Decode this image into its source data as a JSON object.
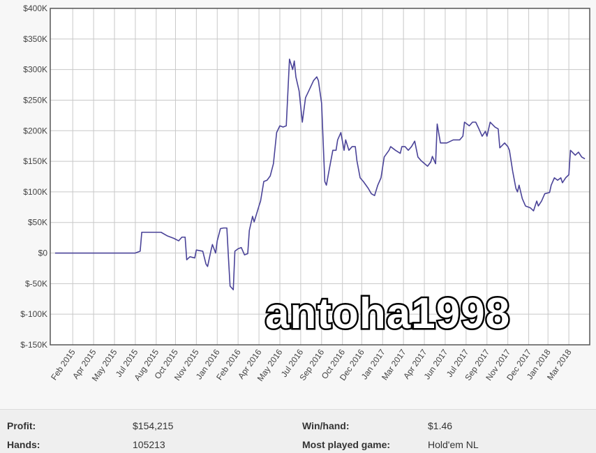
{
  "chart_data": {
    "type": "line",
    "x": [
      2014.99,
      2015.15,
      2015.32,
      2015.49,
      2015.52,
      2015.53,
      2015.58,
      2015.65,
      2015.69,
      2015.73,
      2015.76,
      2015.78,
      2015.8,
      2015.81,
      2015.83,
      2015.86,
      2015.87,
      2015.91,
      2015.93,
      2015.94,
      2015.96,
      2015.97,
      2015.99,
      2016.0,
      2016.02,
      2016.04,
      2016.06,
      2016.07,
      2016.08,
      2016.1,
      2016.11,
      2016.13,
      2016.15,
      2016.17,
      2016.19,
      2016.2,
      2016.22,
      2016.23,
      2016.26,
      2016.27,
      2016.29,
      2016.31,
      2016.33,
      2016.35,
      2016.37,
      2016.39,
      2016.41,
      2016.43,
      2016.45,
      2016.47,
      2016.48,
      2016.49,
      2016.51,
      2016.53,
      2016.55,
      2016.57,
      2016.6,
      2016.62,
      2016.63,
      2016.65,
      2016.67,
      2016.68,
      2016.7,
      2016.72,
      2016.74,
      2016.75,
      2016.77,
      2016.79,
      2016.8,
      2016.82,
      2016.84,
      2016.86,
      2016.87,
      2016.89,
      2016.91,
      2016.94,
      2016.96,
      2016.98,
      2017.0,
      2017.02,
      2017.04,
      2017.07,
      2017.08,
      2017.11,
      2017.14,
      2017.15,
      2017.17,
      2017.19,
      2017.21,
      2017.23,
      2017.25,
      2017.27,
      2017.31,
      2017.33,
      2017.34,
      2017.36,
      2017.37,
      2017.39,
      2017.43,
      2017.47,
      2017.51,
      2017.53,
      2017.54,
      2017.57,
      2017.59,
      2017.61,
      2017.63,
      2017.65,
      2017.67,
      2017.68,
      2017.7,
      2017.73,
      2017.75,
      2017.76,
      2017.79,
      2017.81,
      2017.82,
      2017.84,
      2017.86,
      2017.87,
      2017.88,
      2017.9,
      2017.92,
      2017.95,
      2017.97,
      2017.99,
      2018.0,
      2018.02,
      2018.04,
      2018.07,
      2018.08,
      2018.1,
      2018.12,
      2018.14,
      2018.15,
      2018.17,
      2018.19,
      2018.2,
      2018.23,
      2018.25,
      2018.27,
      2018.29
    ],
    "series": [
      {
        "color": "#4a4398",
        "values": [
          0,
          0,
          0,
          0,
          3000,
          34000,
          34000,
          34000,
          28000,
          24000,
          20000,
          26000,
          26000,
          -11000,
          -6000,
          -8000,
          5000,
          3000,
          -18000,
          -22000,
          3000,
          14000,
          0,
          20000,
          40000,
          41000,
          41000,
          -8000,
          -54000,
          -60000,
          3000,
          7000,
          9000,
          -3000,
          -1000,
          37000,
          60000,
          51000,
          77000,
          85000,
          117000,
          119000,
          126000,
          146000,
          197000,
          208000,
          206000,
          208000,
          317000,
          300000,
          314000,
          288000,
          265000,
          214000,
          254000,
          265000,
          282000,
          288000,
          282000,
          245000,
          117000,
          111000,
          140000,
          168000,
          168000,
          185000,
          197000,
          168000,
          185000,
          168000,
          174000,
          174000,
          151000,
          123000,
          117000,
          106000,
          97000,
          94000,
          111000,
          123000,
          157000,
          168000,
          174000,
          168000,
          163000,
          174000,
          174000,
          168000,
          174000,
          183000,
          157000,
          151000,
          142000,
          149000,
          158000,
          146000,
          211000,
          180000,
          180000,
          185000,
          185000,
          191000,
          214000,
          208000,
          214000,
          214000,
          203000,
          191000,
          199000,
          191000,
          214000,
          206000,
          203000,
          172000,
          180000,
          174000,
          168000,
          134000,
          106000,
          100000,
          111000,
          89000,
          77000,
          74000,
          69000,
          85000,
          77000,
          85000,
          97000,
          99000,
          111000,
          123000,
          119000,
          123000,
          115000,
          123000,
          128000,
          168000,
          160000,
          165000,
          157000,
          154000
        ]
      }
    ],
    "xlim": [
      2014.96,
      2018.32
    ],
    "xticks": [
      {
        "value": 2015.1,
        "label": "Feb 2015"
      },
      {
        "value": 2015.23,
        "label": "Apr 2015"
      },
      {
        "value": 2015.36,
        "label": "May 2015"
      },
      {
        "value": 2015.49,
        "label": "Jul 2015"
      },
      {
        "value": 2015.62,
        "label": "Aug 2015"
      },
      {
        "value": 2015.74,
        "label": "Oct 2015"
      },
      {
        "value": 2015.87,
        "label": "Nov 2015"
      },
      {
        "value": 2016.0,
        "label": "Jan 2016"
      },
      {
        "value": 2016.13,
        "label": "Feb 2016"
      },
      {
        "value": 2016.26,
        "label": "Apr 2016"
      },
      {
        "value": 2016.39,
        "label": "May 2016"
      },
      {
        "value": 2016.52,
        "label": "Jul 2016"
      },
      {
        "value": 2016.65,
        "label": "Sep 2016"
      },
      {
        "value": 2016.78,
        "label": "Oct 2016"
      },
      {
        "value": 2016.9,
        "label": "Dec 2016"
      },
      {
        "value": 2017.03,
        "label": "Jan 2017"
      },
      {
        "value": 2017.16,
        "label": "Mar 2017"
      },
      {
        "value": 2017.29,
        "label": "Apr 2017"
      },
      {
        "value": 2017.42,
        "label": "Jun 2017"
      },
      {
        "value": 2017.55,
        "label": "Jul 2017"
      },
      {
        "value": 2017.68,
        "label": "Sep 2017"
      },
      {
        "value": 2017.81,
        "label": "Nov 2017"
      },
      {
        "value": 2017.94,
        "label": "Dec 2017"
      },
      {
        "value": 2018.06,
        "label": "Jan 2018"
      },
      {
        "value": 2018.19,
        "label": "Mar 2018"
      }
    ],
    "ylim": [
      -150000,
      400000
    ],
    "yticks": [
      {
        "value": -150000,
        "label": "$-150K"
      },
      {
        "value": -100000,
        "label": "$-100K"
      },
      {
        "value": -50000,
        "label": "$-50K"
      },
      {
        "value": 0,
        "label": "$0"
      },
      {
        "value": 50000,
        "label": "$50K"
      },
      {
        "value": 100000,
        "label": "$100K"
      },
      {
        "value": 150000,
        "label": "$150K"
      },
      {
        "value": 200000,
        "label": "$200K"
      },
      {
        "value": 250000,
        "label": "$250K"
      },
      {
        "value": 300000,
        "label": "$300K"
      },
      {
        "value": 350000,
        "label": "$350K"
      },
      {
        "value": 400000,
        "label": "$400K"
      }
    ],
    "grid": true
  },
  "overlay_text": "antoha1998",
  "stats": [
    {
      "label": "Profit:",
      "value": "$154,215"
    },
    {
      "label": "Win/hand:",
      "value": "$1.46"
    },
    {
      "label": "Hands:",
      "value": "105213"
    },
    {
      "label": "Most played game:",
      "value": "Hold'em NL"
    }
  ]
}
